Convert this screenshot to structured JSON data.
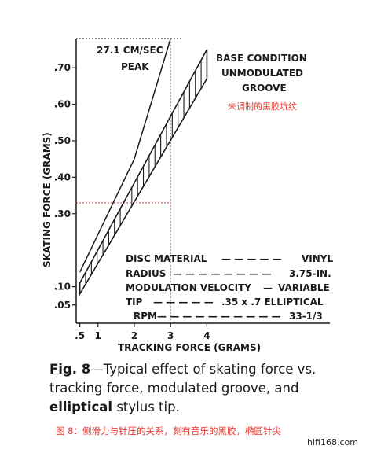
{
  "chart_data": {
    "type": "line",
    "xlabel": "TRACKING FORCE (GRAMS)",
    "ylabel": "SKATING FORCE (GRAMS)",
    "xlim": [
      0.4,
      4.25
    ],
    "ylim": [
      0.0,
      0.78
    ],
    "x_ticks": [
      ".5",
      "1",
      "2",
      "3",
      "4"
    ],
    "x_tick_values": [
      0.5,
      1,
      2,
      3,
      4
    ],
    "y_ticks": [
      ".05",
      ".10",
      ".30",
      ".40",
      ".50",
      ".60",
      ".70"
    ],
    "y_tick_values": [
      0.05,
      0.1,
      0.3,
      0.4,
      0.5,
      0.6,
      0.7
    ],
    "series": [
      {
        "name": "27.1 CM/SEC PEAK",
        "x": [
          0.5,
          2.0,
          3.0
        ],
        "y": [
          0.14,
          0.45,
          0.78
        ]
      },
      {
        "name": "BASE CONDITION UNMODULATED GROOVE",
        "band": true,
        "x": [
          0.5,
          4.0
        ],
        "y_low": [
          0.08,
          0.67
        ],
        "y_high": [
          0.11,
          0.75
        ]
      }
    ],
    "reference_lines": [
      {
        "x": 3.0,
        "y": 0.33
      }
    ],
    "specs": [
      {
        "label": "DISC MATERIAL",
        "dashes": "— — — — —",
        "value": "VINYL"
      },
      {
        "label": "RADIUS",
        "dashes": "— — — — — — — —",
        "value": "3.75-IN."
      },
      {
        "label": "MODULATION VELOCITY",
        "dashes": "—",
        "value": "VARIABLE"
      },
      {
        "label": "TIP",
        "dashes": "— — — — —",
        "value": ".35 x .7 ELLIPTICAL"
      },
      {
        "label": "RPM",
        "dashes": "— — — — — — — — — —",
        "value": "33-1/3"
      }
    ],
    "annotations": {
      "peak_line1": "27.1 CM/SEC",
      "peak_line2": "PEAK",
      "base_line1": "BASE CONDITION",
      "base_line2": "UNMODULATED",
      "base_line3": "GROOVE",
      "base_cn": "未调制的黑胶坑纹"
    }
  },
  "caption": {
    "fig": "Fig. 8",
    "text1": "—Typical effect of skating force vs.",
    "text2": "tracking force, modulated groove, and",
    "bold_word": "elliptical",
    "text3": " stylus tip.",
    "cn": "图 8：侧滑力与针压的关系，刻有音乐的黑胶，椭圆针尖"
  },
  "watermark": "hifi168.com",
  "colors": {
    "ink": "#1a1a1a",
    "accent_red": "#e8362e",
    "reference_dots": "#d0454a"
  }
}
